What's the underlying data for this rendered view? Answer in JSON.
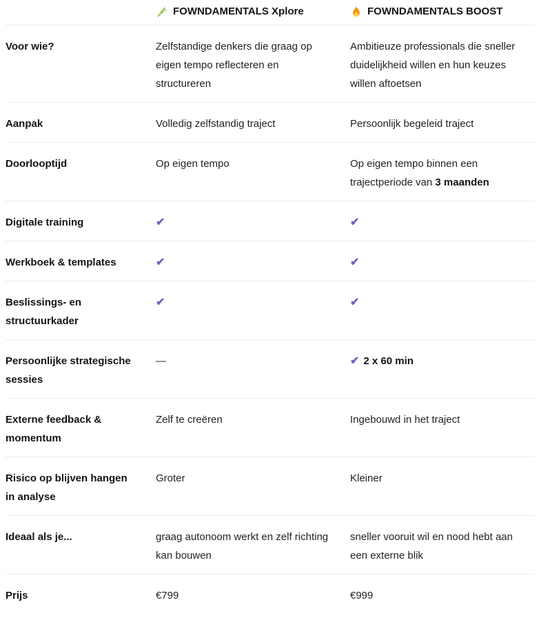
{
  "header": {
    "columns": [
      {
        "icon": "herb-icon",
        "glyph": "🌿",
        "label": "FOWNDAMENTALS Xplore"
      },
      {
        "icon": "fire-icon",
        "glyph": "🔥",
        "label": "FOWNDAMENTALS BOOST"
      }
    ]
  },
  "icons": {
    "check": "✔",
    "dash": "—"
  },
  "colors": {
    "check": "#7b5cbf",
    "divider": "#ececec",
    "text": "#1b1b1b"
  },
  "rows": [
    {
      "label": "Voor wie?",
      "cells": [
        {
          "type": "text",
          "text": "Zelfstandige denkers die graag op eigen tempo reflecteren en structureren"
        },
        {
          "type": "text",
          "text": "Ambitieuze professionals die sneller duidelijkheid willen en hun keuzes willen aftoetsen"
        }
      ]
    },
    {
      "label": "Aanpak",
      "cells": [
        {
          "type": "text",
          "text": "Volledig zelfstandig traject"
        },
        {
          "type": "text",
          "text": "Persoonlijk begeleid traject"
        }
      ]
    },
    {
      "label": "Doorlooptijd",
      "cells": [
        {
          "type": "text",
          "text": "Op eigen tempo"
        },
        {
          "type": "text",
          "text": "Op eigen tempo binnen een trajectperiode van ",
          "bold": "3 maanden"
        }
      ]
    },
    {
      "label": "Digitale training",
      "cells": [
        {
          "type": "check"
        },
        {
          "type": "check"
        }
      ]
    },
    {
      "label": "Werkboek & templates",
      "cells": [
        {
          "type": "check"
        },
        {
          "type": "check"
        }
      ]
    },
    {
      "label": "Beslissings- en structuurkader",
      "cells": [
        {
          "type": "check"
        },
        {
          "type": "check"
        }
      ]
    },
    {
      "label": "Persoonlijke strategische sessies",
      "cells": [
        {
          "type": "dash"
        },
        {
          "type": "check",
          "bold": "2 x 60 min"
        }
      ]
    },
    {
      "label": "Externe feedback & momentum",
      "cells": [
        {
          "type": "text",
          "text": "Zelf te creëren"
        },
        {
          "type": "text",
          "text": "Ingebouwd in het traject"
        }
      ]
    },
    {
      "label": "Risico op blijven hangen in analyse",
      "cells": [
        {
          "type": "text",
          "text": "Groter"
        },
        {
          "type": "text",
          "text": "Kleiner"
        }
      ]
    },
    {
      "label": "Ideaal als je...",
      "cells": [
        {
          "type": "text",
          "text": "graag autonoom werkt en zelf richting kan bouwen"
        },
        {
          "type": "text",
          "text": "sneller vooruit wil en nood hebt aan een externe blik"
        }
      ]
    },
    {
      "label": "Prijs",
      "cells": [
        {
          "type": "text",
          "text": "€799"
        },
        {
          "type": "text",
          "text": "€999"
        }
      ]
    }
  ]
}
